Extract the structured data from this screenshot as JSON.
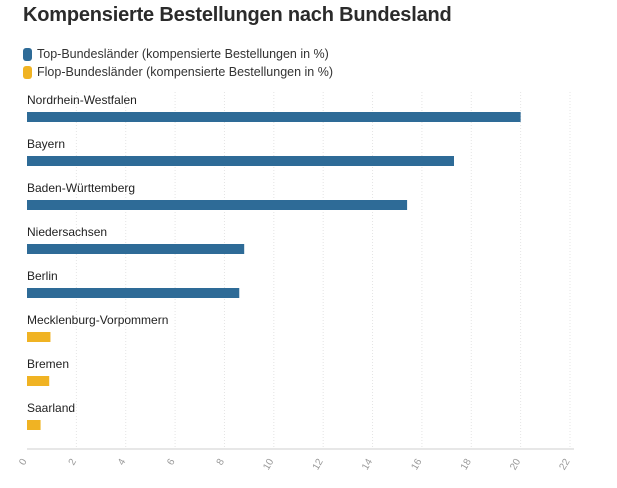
{
  "chart_data": {
    "type": "bar",
    "orientation": "horizontal",
    "title": "Kompensierte Bestellungen nach Bundesland",
    "categories": [
      "Nordrhein-Westfalen",
      "Bayern",
      "Baden-Württemberg",
      "Niedersachsen",
      "Berlin",
      "Mecklenburg-Vorpommern",
      "Bremen",
      "Saarland"
    ],
    "series": [
      {
        "name": "Top-Bundesländer (kompensierte Bestellungen in %)",
        "color": "#2e6b97",
        "values": [
          20.0,
          17.3,
          15.4,
          8.8,
          8.6,
          null,
          null,
          null
        ]
      },
      {
        "name": "Flop-Bundesländer (kompensierte Bestellungen in %)",
        "color": "#f0b323",
        "values": [
          null,
          null,
          null,
          null,
          null,
          0.95,
          0.9,
          0.55
        ]
      }
    ],
    "xlim": [
      0,
      22
    ],
    "xticks": [
      0,
      2,
      4,
      6,
      8,
      10,
      12,
      14,
      16,
      18,
      20,
      22
    ],
    "xlabel": "",
    "ylabel": "",
    "grid": true,
    "legend_position": "top-left"
  }
}
